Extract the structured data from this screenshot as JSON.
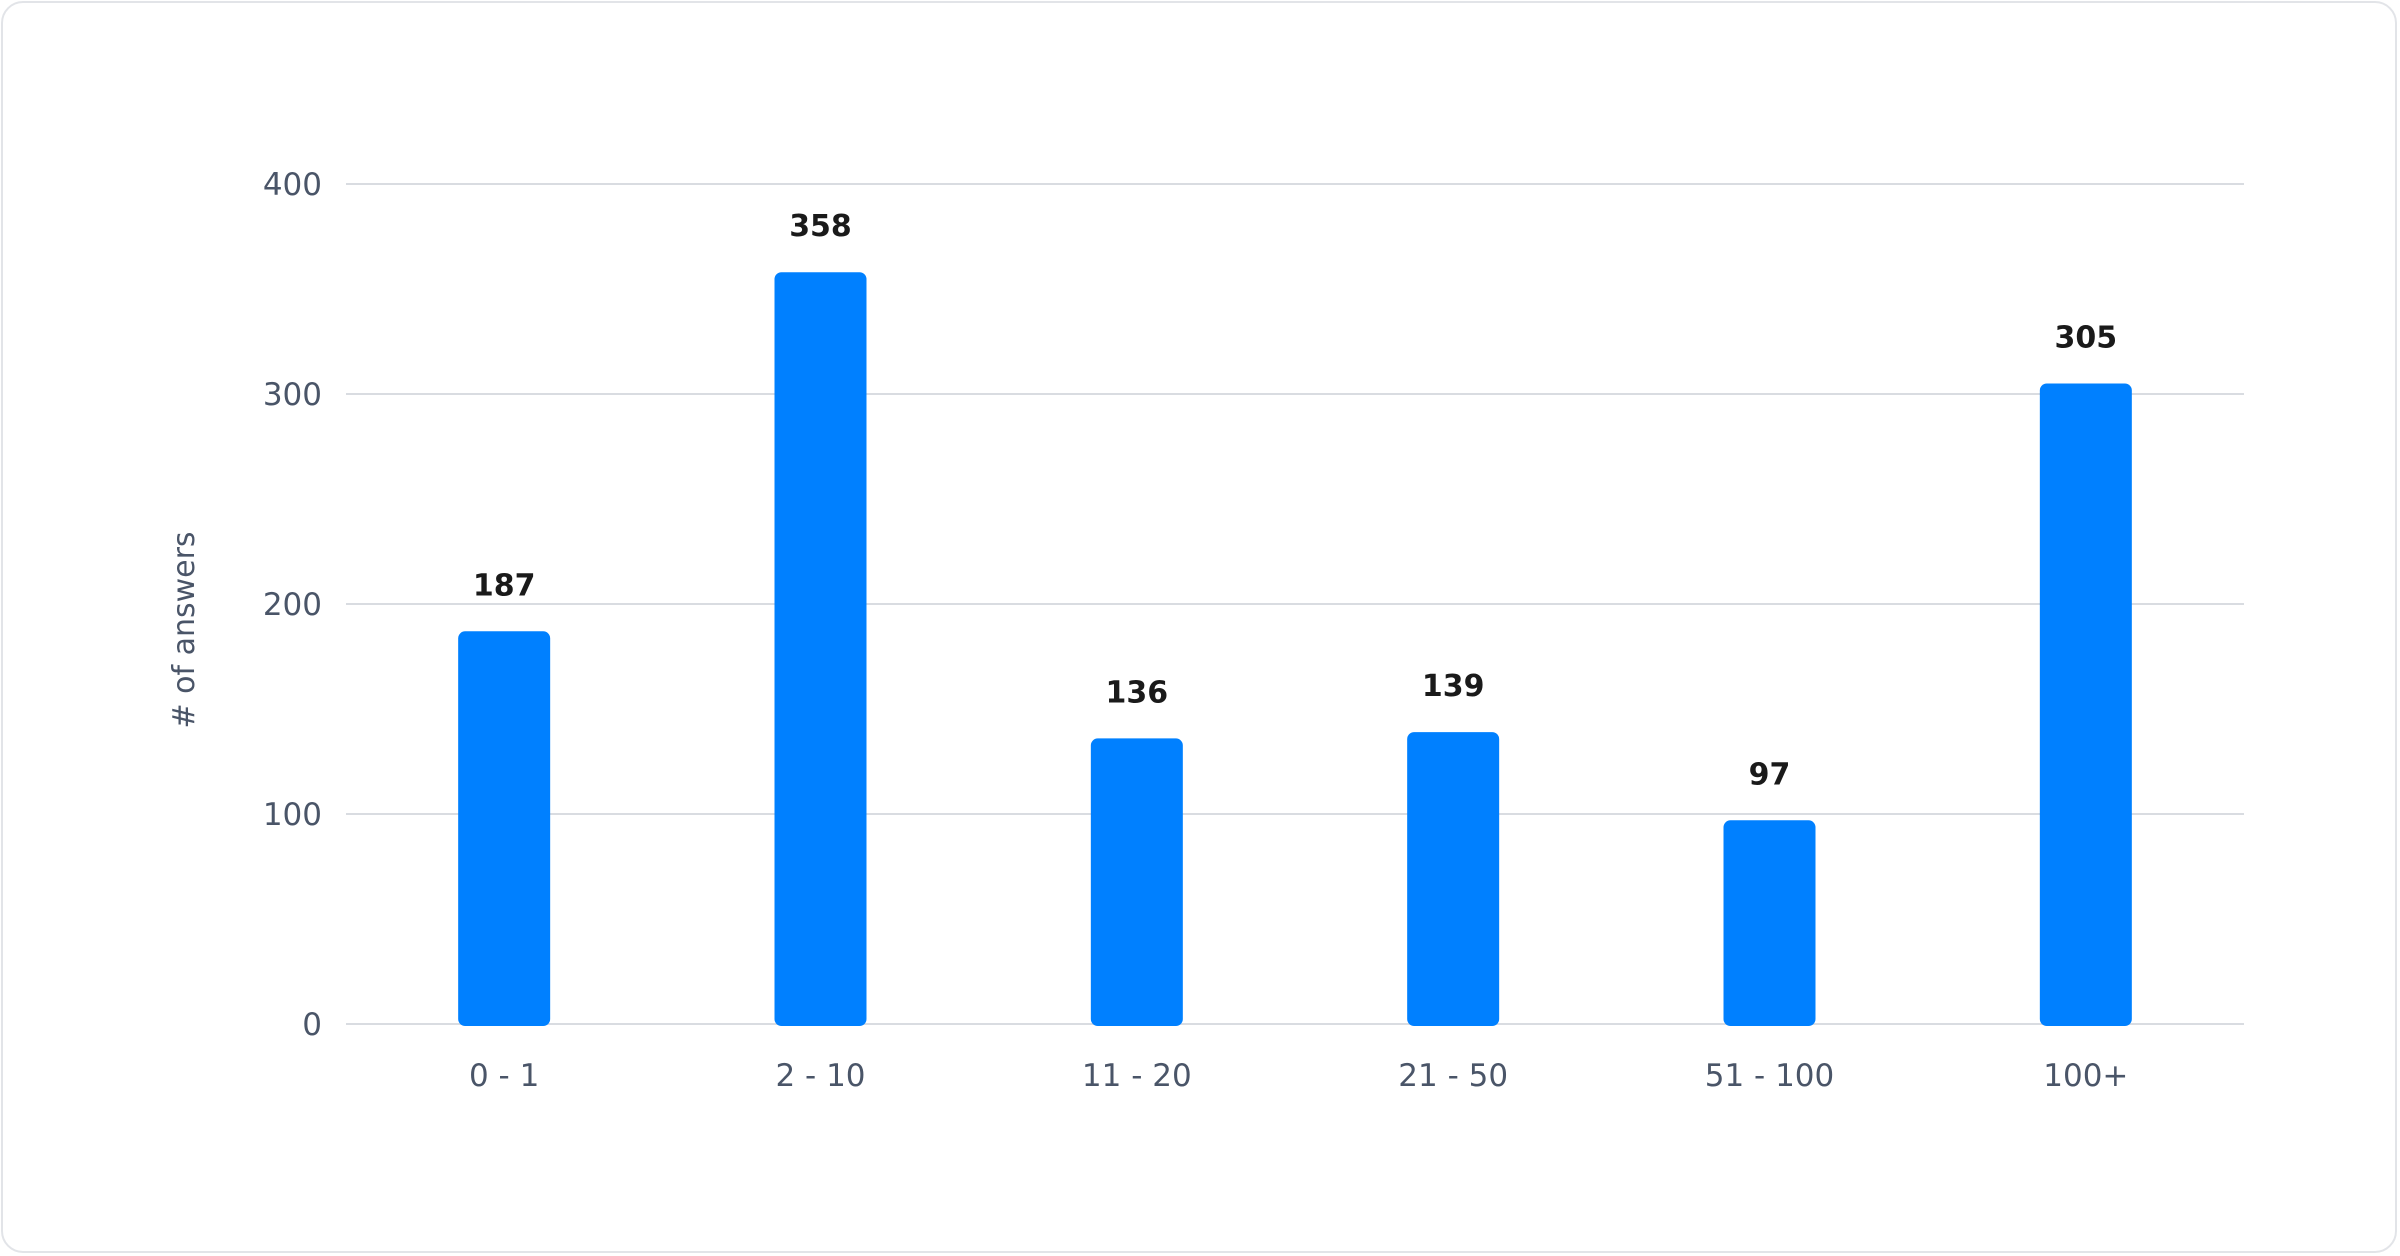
{
  "chart_data": {
    "type": "bar",
    "title": "",
    "xlabel": "",
    "ylabel": "# of answers",
    "categories": [
      "0 - 1",
      "2 - 10",
      "11 - 20",
      "21 - 50",
      "51 - 100",
      "100+"
    ],
    "values": [
      187,
      358,
      136,
      139,
      97,
      305
    ],
    "data_labels": [
      "187",
      "358",
      "136",
      "139",
      "97",
      "305"
    ],
    "ylim": [
      0,
      400
    ],
    "yticks": [
      "0",
      "100",
      "200",
      "300",
      "400"
    ],
    "ytick_values": [
      0,
      100,
      200,
      300,
      400
    ],
    "grid": true,
    "legend": "none",
    "colors": {
      "bar": "#0080FF",
      "grid": "#d9dce1",
      "tick_text": "#4a5568",
      "label_text": "#1a1a1a"
    }
  }
}
